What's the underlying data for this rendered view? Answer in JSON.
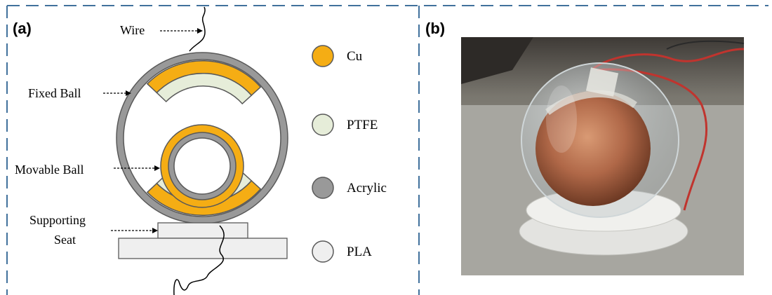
{
  "colors": {
    "border_dash": "#41719c",
    "copper": "#f5ad14",
    "ptfe": "#e6edd9",
    "acrylic": "#999999",
    "pla": "#efefef",
    "outline": "#595959"
  },
  "panel_a": {
    "label": "(a)",
    "annotations": {
      "wire": "Wire",
      "fixed_ball": "Fixed Ball",
      "movable_ball": "Movable Ball",
      "supporting_seat_line1": "Supporting",
      "supporting_seat_line2": "Seat"
    },
    "legend": [
      {
        "label": "Cu",
        "color": "#f5ad14"
      },
      {
        "label": "PTFE",
        "color": "#e6edd9"
      },
      {
        "label": "Acrylic",
        "color": "#999999"
      },
      {
        "label": "PLA",
        "color": "#efefef"
      }
    ]
  },
  "panel_b": {
    "label": "(b)"
  }
}
